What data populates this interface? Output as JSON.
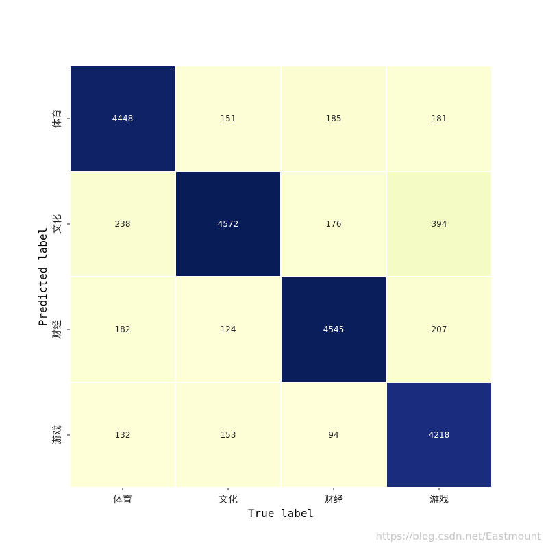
{
  "chart_data": {
    "type": "heatmap",
    "title": "",
    "xlabel": "True label",
    "ylabel": "Predicted label",
    "x_categories": [
      "体育",
      "文化",
      "财经",
      "游戏"
    ],
    "y_categories": [
      "体育",
      "文化",
      "财经",
      "游戏"
    ],
    "values": [
      [
        4448,
        151,
        185,
        181
      ],
      [
        238,
        4572,
        176,
        394
      ],
      [
        182,
        124,
        4545,
        207
      ],
      [
        132,
        153,
        94,
        4218
      ]
    ],
    "colormap": "YlGnBu",
    "colorbar": false,
    "grid_lines": true,
    "grid_line_color": "#ffffff"
  },
  "watermark": "https://blog.csdn.net/Eastmount"
}
